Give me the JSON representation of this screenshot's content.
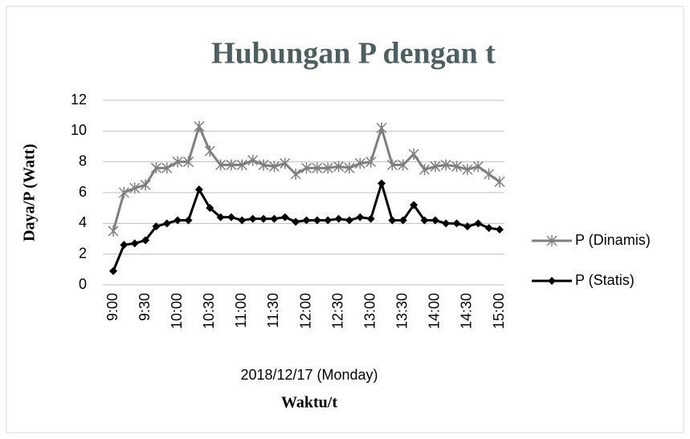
{
  "chart_data": {
    "type": "line",
    "title": "Hubungan P dengan t",
    "y_label": "Daya/P (Watt)",
    "x_label": "2018/12/17 (Monday)",
    "x_title": "Waktu/t",
    "categories": [
      "9:00",
      null,
      null,
      "9:30",
      null,
      null,
      "10:00",
      null,
      null,
      "10:30",
      null,
      null,
      "11:00",
      null,
      null,
      "11:30",
      null,
      null,
      "12:00",
      null,
      null,
      "12:30",
      null,
      null,
      "13:00",
      null,
      null,
      "13:30",
      null,
      null,
      "14:00",
      null,
      null,
      "14:30",
      null,
      null,
      "15:00"
    ],
    "series": [
      {
        "name": "P (Dinamis)",
        "color": "#7f7f7f",
        "marker": "star",
        "values": [
          3.5,
          6.0,
          6.3,
          6.5,
          7.6,
          7.6,
          8.0,
          8.0,
          10.3,
          8.7,
          7.8,
          7.8,
          7.8,
          8.1,
          7.8,
          7.7,
          7.9,
          7.2,
          7.6,
          7.6,
          7.6,
          7.7,
          7.6,
          7.9,
          8.0,
          10.2,
          7.8,
          7.8,
          8.5,
          7.5,
          7.7,
          7.8,
          7.7,
          7.5,
          7.7,
          7.2,
          6.7
        ]
      },
      {
        "name": "P (Statis)",
        "color": "#000000",
        "marker": "diamond",
        "values": [
          0.9,
          2.6,
          2.7,
          2.9,
          3.8,
          4.0,
          4.2,
          4.2,
          6.2,
          5.0,
          4.4,
          4.4,
          4.2,
          4.3,
          4.3,
          4.3,
          4.4,
          4.1,
          4.2,
          4.2,
          4.2,
          4.3,
          4.2,
          4.4,
          4.3,
          6.6,
          4.2,
          4.2,
          5.2,
          4.2,
          4.2,
          4.0,
          4.0,
          3.8,
          4.0,
          3.7,
          3.6
        ]
      }
    ],
    "ylim": [
      0,
      12
    ],
    "yticks": [
      0,
      2,
      4,
      6,
      8,
      10,
      12
    ],
    "grid": true,
    "legend": "right"
  }
}
